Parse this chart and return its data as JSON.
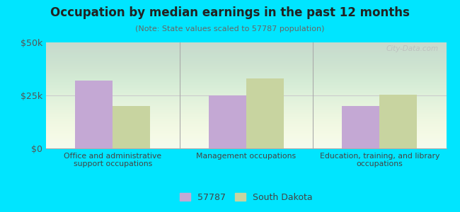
{
  "title": "Occupation by median earnings in the past 12 months",
  "subtitle": "(Note: State values scaled to 57787 population)",
  "categories": [
    "Office and administrative\nsupport occupations",
    "Management occupations",
    "Education, training, and library\noccupations"
  ],
  "series_57787": [
    32000,
    25000,
    20000
  ],
  "series_sd": [
    20000,
    33000,
    25500
  ],
  "color_57787": "#c4a8d4",
  "color_sd": "#c8d4a0",
  "ylim": [
    0,
    50000
  ],
  "yticks": [
    0,
    25000,
    50000
  ],
  "ytick_labels": [
    "$0",
    "$25k",
    "$50k"
  ],
  "background_color": "#00e5ff",
  "watermark": "City-Data.com",
  "legend_label_1": "57787",
  "legend_label_2": "South Dakota",
  "bar_width": 0.28,
  "title_fontsize": 12,
  "subtitle_fontsize": 8
}
